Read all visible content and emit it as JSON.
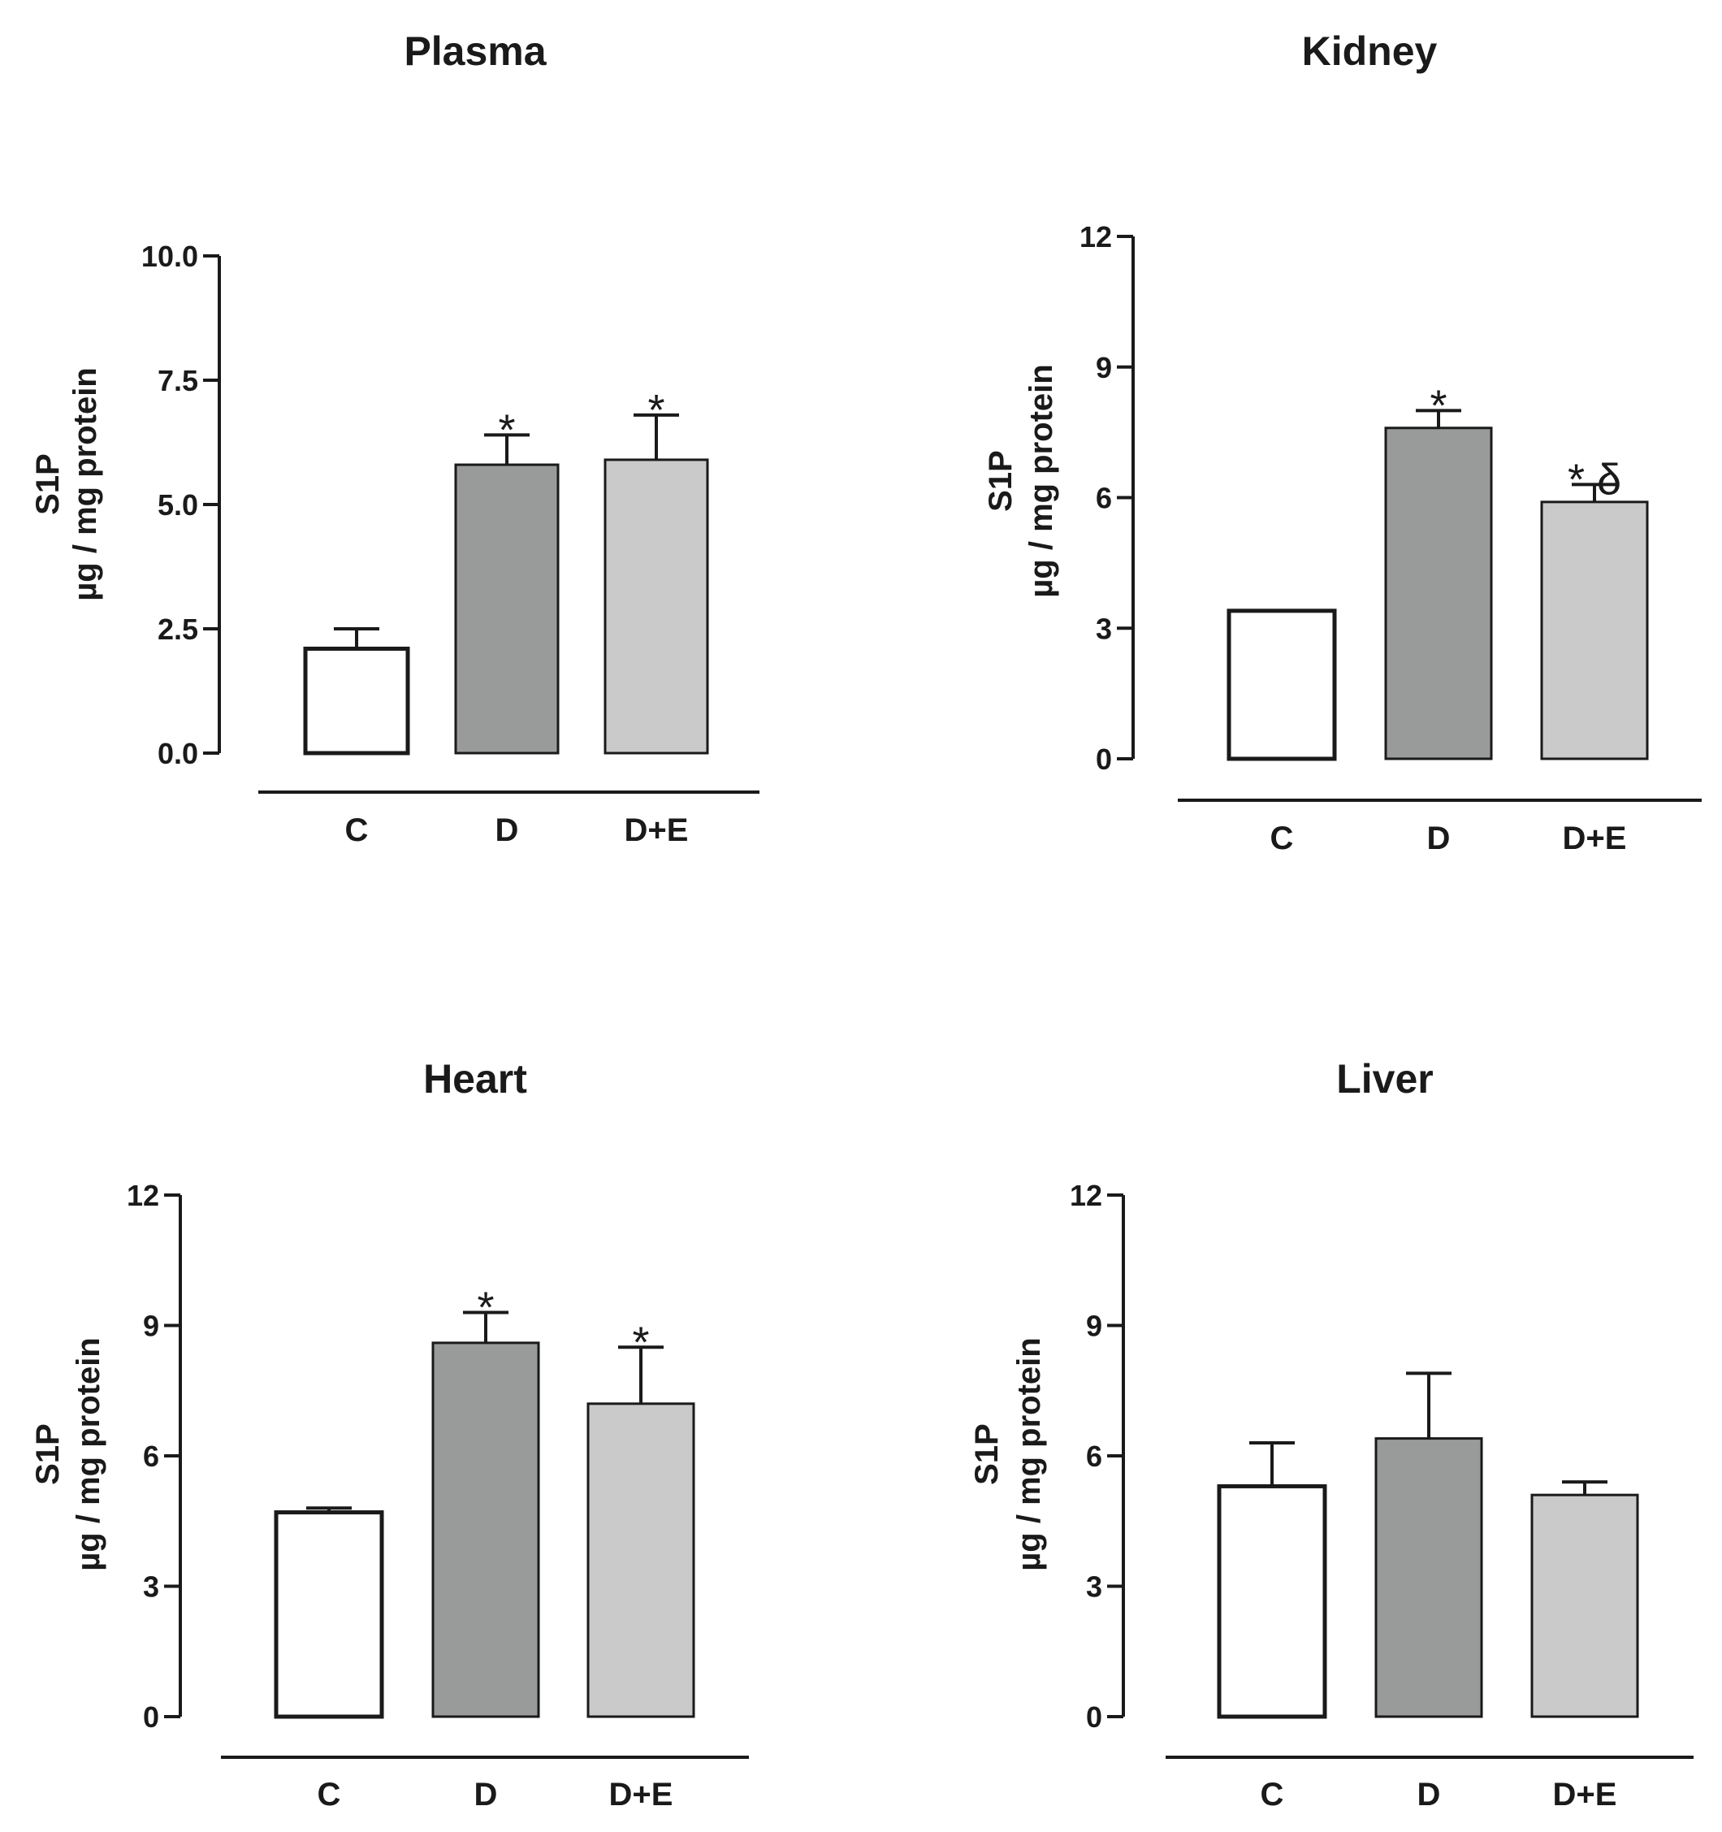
{
  "colors": {
    "C": "#ffffff",
    "D": "#999b9a",
    "D+E": "#c9cac9",
    "stroke": "#1a1a1a"
  },
  "chart_data": [
    {
      "type": "bar",
      "title": "Plasma",
      "ylabel_line1": "S1P",
      "ylabel_line2": "µg / mg protein",
      "xlabel": "",
      "categories": [
        "C",
        "D",
        "D+E"
      ],
      "values": [
        2.1,
        5.8,
        5.9
      ],
      "errors": [
        0.4,
        0.6,
        0.9
      ],
      "annotations": [
        "",
        "*",
        "*"
      ],
      "ylim": [
        0,
        10
      ],
      "yticks": [
        0,
        2.5,
        5,
        7.5,
        10
      ],
      "ytick_labels": [
        "0.0",
        "2.5",
        "5.0",
        "7.5",
        "10.0"
      ]
    },
    {
      "type": "bar",
      "title": "Kidney",
      "ylabel_line1": "S1P",
      "ylabel_line2": "µg / mg protein",
      "xlabel": "",
      "categories": [
        "C",
        "D",
        "D+E"
      ],
      "values": [
        3.4,
        7.6,
        5.9
      ],
      "errors": [
        0,
        0.4,
        0.4
      ],
      "annotations": [
        "",
        "*",
        "* δ"
      ],
      "ylim": [
        0,
        12
      ],
      "yticks": [
        0,
        3,
        6,
        9,
        12
      ],
      "ytick_labels": [
        "0",
        "3",
        "6",
        "9",
        "12"
      ]
    },
    {
      "type": "bar",
      "title": "Heart",
      "ylabel_line1": "S1P",
      "ylabel_line2": "µg / mg protein",
      "xlabel": "",
      "categories": [
        "C",
        "D",
        "D+E"
      ],
      "values": [
        4.7,
        8.6,
        7.2
      ],
      "errors": [
        0.1,
        0.7,
        1.3
      ],
      "annotations": [
        "",
        "*",
        "*"
      ],
      "ylim": [
        0,
        12
      ],
      "yticks": [
        0,
        3,
        6,
        9,
        12
      ],
      "ytick_labels": [
        "0",
        "3",
        "6",
        "9",
        "12"
      ]
    },
    {
      "type": "bar",
      "title": "Liver",
      "ylabel_line1": "S1P",
      "ylabel_line2": "µg / mg protein",
      "xlabel": "",
      "categories": [
        "C",
        "D",
        "D+E"
      ],
      "values": [
        5.3,
        6.4,
        5.1
      ],
      "errors": [
        1.0,
        1.5,
        0.3
      ],
      "annotations": [
        "",
        "",
        ""
      ],
      "ylim": [
        0,
        12
      ],
      "yticks": [
        0,
        3,
        6,
        9,
        12
      ],
      "ytick_labels": [
        "0",
        "3",
        "6",
        "9",
        "12"
      ]
    }
  ]
}
